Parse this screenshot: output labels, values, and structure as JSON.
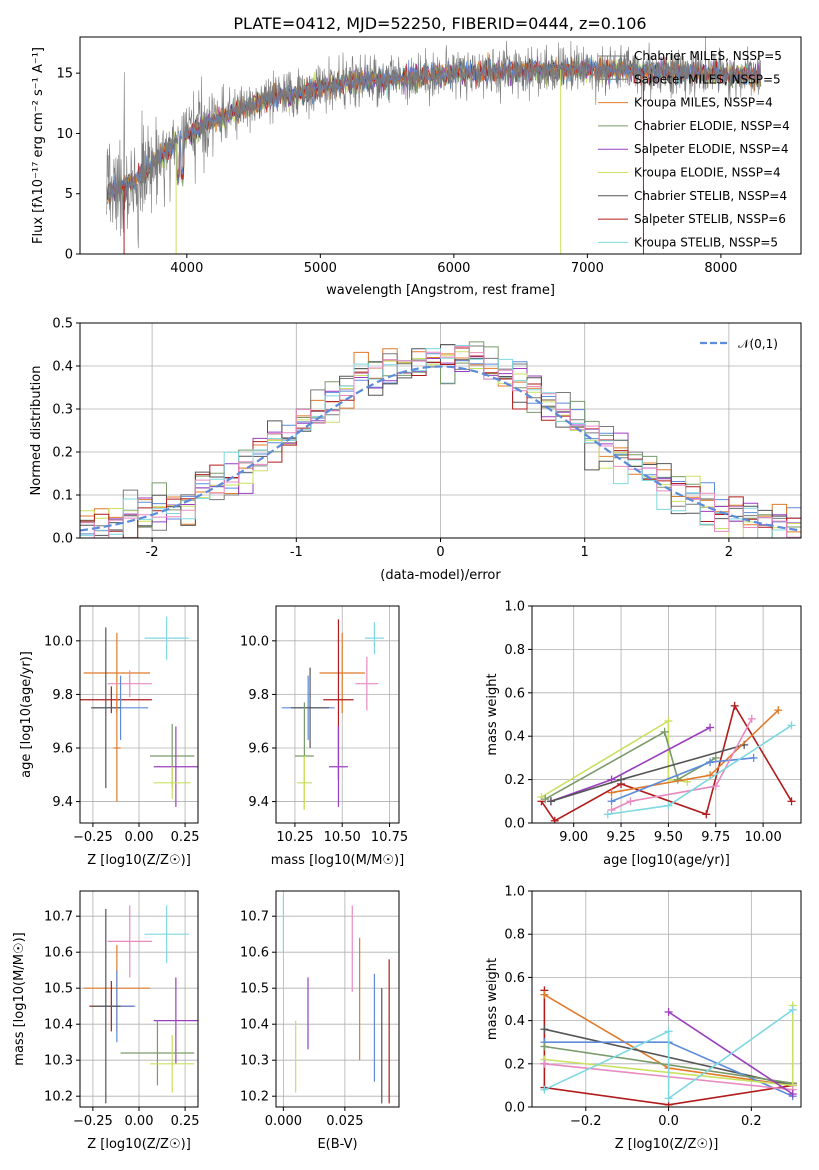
{
  "title": "PLATE=0412, MJD=52250, FIBERID=0444, z=0.106",
  "colors": {
    "Chabrier MILES": "#5b8bd9",
    "Salpeter MILES": "#e07b2b",
    "Kroupa MILES": "#7a7a7a",
    "Chabrier ELODIE": "#7a9a6a",
    "Salpeter ELODIE": "#9b3fbf",
    "Kroupa ELODIE": "#c9e060",
    "Chabrier STELIB": "#555555",
    "Salpeter STELIB": "#b01c1c",
    "Kroupa STELIB": "#7fd8e0",
    "Pink": "#e88ac0",
    "Normal": "#5b8bd9"
  },
  "chart_data": [
    {
      "type": "line",
      "panel": "spectrum",
      "xlabel": "wavelength [Angstrom, rest frame]",
      "ylabel": "Flux [fλ10⁻¹⁷ erg cm⁻² s⁻¹ A⁻¹]",
      "xlim": [
        3200,
        8600
      ],
      "ylim": [
        0,
        18
      ],
      "xticks": [
        4000,
        5000,
        6000,
        7000,
        8000
      ],
      "yticks": [
        0,
        5,
        10,
        15
      ],
      "legend_position": "right",
      "legend": [
        {
          "label": "Chabrier MILES, NSSP=5",
          "color": "#7a7a7a"
        },
        {
          "label": "Salpeter MILES, NSSP=5",
          "color": "#7a7a7a"
        },
        {
          "label": "Kroupa MILES, NSSP=4",
          "color": "#e07b2b"
        },
        {
          "label": "Chabrier ELODIE, NSSP=4",
          "color": "#7a9a6a"
        },
        {
          "label": "Salpeter ELODIE, NSSP=4",
          "color": "#9b3fbf"
        },
        {
          "label": "Kroupa ELODIE, NSSP=4",
          "color": "#c9e060"
        },
        {
          "label": "Chabrier STELIB, NSSP=4",
          "color": "#555555"
        },
        {
          "label": "Salpeter STELIB, NSSP=6",
          "color": "#b01c1c"
        },
        {
          "label": "Kroupa STELIB, NSSP=5",
          "color": "#7fd8e0"
        }
      ],
      "continuum": {
        "x": [
          3400,
          3600,
          3800,
          4000,
          4200,
          4400,
          4600,
          4800,
          5000,
          5200,
          5400,
          5600,
          5800,
          6000,
          6200,
          6400,
          6600,
          6800,
          7000,
          7200,
          7400,
          7600,
          7800,
          8000,
          8200,
          8300
        ],
        "y": [
          5.0,
          6.0,
          8.0,
          10.0,
          11.0,
          12.0,
          12.8,
          13.3,
          13.8,
          14.2,
          14.4,
          14.6,
          14.8,
          15.0,
          15.1,
          15.2,
          15.2,
          15.3,
          15.3,
          15.3,
          15.2,
          15.1,
          15.0,
          14.9,
          14.8,
          14.7
        ]
      }
    },
    {
      "type": "step",
      "panel": "residuals",
      "xlabel": "(data-model)/error",
      "ylabel": "Normed distribution",
      "xlim": [
        -2.5,
        2.5
      ],
      "ylim": [
        0,
        0.5
      ],
      "xticks": [
        -2,
        -1,
        0,
        1,
        2
      ],
      "yticks": [
        0.0,
        0.1,
        0.2,
        0.3,
        0.4,
        0.5
      ],
      "legend_label": "𝒩(0,1)",
      "bin_width": 0.1
    },
    {
      "type": "scatter",
      "panel": "age-vs-Z",
      "xlabel": "Z [log10(Z/Z☉)]",
      "ylabel": "age  [log10(age/yr)]",
      "xlim": [
        -0.32,
        0.32
      ],
      "ylim": [
        9.32,
        10.13
      ],
      "xticks": [
        -0.25,
        0.0,
        0.25
      ],
      "xtick_labels": [
        "−0.25",
        "0.00",
        "0.25"
      ],
      "yticks": [
        9.4,
        9.6,
        9.8,
        10.0
      ],
      "points": [
        {
          "x": 0.15,
          "y": 10.01,
          "dx": 0.12,
          "dy": 0.08,
          "color": "#7fd8e0"
        },
        {
          "x": -0.12,
          "y": 9.88,
          "dx": 0.18,
          "dy": 0.15,
          "color": "#e07b2b"
        },
        {
          "x": -0.05,
          "y": 9.84,
          "dx": 0.12,
          "dy": 0.05,
          "color": "#e88ac0"
        },
        {
          "x": -0.15,
          "y": 9.78,
          "dx": 0.22,
          "dy": 0.05,
          "color": "#b01c1c"
        },
        {
          "x": -0.1,
          "y": 9.75,
          "dx": 0.15,
          "dy": 0.12,
          "color": "#5b8bd9"
        },
        {
          "x": -0.18,
          "y": 9.75,
          "dx": 0.08,
          "dy": 0.3,
          "color": "#555555"
        },
        {
          "x": 0.18,
          "y": 9.57,
          "dx": 0.12,
          "dy": 0.12,
          "color": "#7a9a6a"
        },
        {
          "x": 0.2,
          "y": 9.53,
          "dx": 0.12,
          "dy": 0.15,
          "color": "#9b3fbf"
        },
        {
          "x": 0.18,
          "y": 9.47,
          "dx": 0.1,
          "dy": 0.06,
          "color": "#c9e060"
        },
        {
          "x": -0.12,
          "y": 9.6,
          "dx": 0.02,
          "dy": 0.2,
          "color": "#e07b2b"
        }
      ]
    },
    {
      "type": "scatter",
      "panel": "age-vs-mass",
      "xlabel": "mass [log10(M/M☉)]",
      "xlim": [
        10.15,
        10.8
      ],
      "ylim": [
        9.32,
        10.13
      ],
      "xticks": [
        10.25,
        10.5,
        10.75
      ],
      "xtick_labels": [
        "10.25",
        "10.50",
        "10.75"
      ],
      "yticks": [
        9.4,
        9.6,
        9.8,
        10.0
      ],
      "points": [
        {
          "x": 10.67,
          "y": 10.01,
          "dx": 0.05,
          "dy": 0.06,
          "color": "#7fd8e0"
        },
        {
          "x": 10.5,
          "y": 9.88,
          "dx": 0.12,
          "dy": 0.15,
          "color": "#e07b2b"
        },
        {
          "x": 10.63,
          "y": 9.84,
          "dx": 0.06,
          "dy": 0.1,
          "color": "#e88ac0"
        },
        {
          "x": 10.48,
          "y": 9.78,
          "dx": 0.08,
          "dy": 0.3,
          "color": "#b01c1c"
        },
        {
          "x": 10.32,
          "y": 9.75,
          "dx": 0.14,
          "dy": 0.12,
          "color": "#5b8bd9"
        },
        {
          "x": 10.33,
          "y": 9.75,
          "dx": 0.1,
          "dy": 0.15,
          "color": "#555555"
        },
        {
          "x": 10.3,
          "y": 9.57,
          "dx": 0.05,
          "dy": 0.2,
          "color": "#7a9a6a"
        },
        {
          "x": 10.48,
          "y": 9.53,
          "dx": 0.05,
          "dy": 0.15,
          "color": "#9b3fbf"
        },
        {
          "x": 10.3,
          "y": 9.47,
          "dx": 0.04,
          "dy": 0.1,
          "color": "#c9e060"
        }
      ]
    },
    {
      "type": "line",
      "panel": "weight-vs-age",
      "xlabel": "age  [log10(age/yr)]",
      "ylabel": "mass weight",
      "xlim": [
        8.78,
        10.2
      ],
      "ylim": [
        0,
        1
      ],
      "xticks": [
        9.0,
        9.25,
        9.5,
        9.75,
        10.0
      ],
      "xtick_labels": [
        "9.00",
        "9.25",
        "9.50",
        "9.75",
        "10.00"
      ],
      "yticks": [
        0.0,
        0.2,
        0.4,
        0.6,
        0.8,
        1.0
      ],
      "series": [
        {
          "color": "#b01c1c",
          "x": [
            8.83,
            8.9,
            9.25,
            9.7,
            9.85,
            10.15
          ],
          "y": [
            0.1,
            0.01,
            0.18,
            0.04,
            0.54,
            0.1
          ]
        },
        {
          "color": "#c9e060",
          "x": [
            8.83,
            9.5,
            9.5,
            9.6
          ],
          "y": [
            0.12,
            0.47,
            0.2,
            0.19
          ]
        },
        {
          "color": "#7a9a6a",
          "x": [
            8.85,
            9.48,
            9.55,
            9.75
          ],
          "y": [
            0.11,
            0.42,
            0.2,
            0.3
          ]
        },
        {
          "color": "#9b3fbf",
          "x": [
            8.88,
            9.2,
            9.72
          ],
          "y": [
            0.1,
            0.2,
            0.44
          ]
        },
        {
          "color": "#555555",
          "x": [
            8.88,
            9.25,
            9.9
          ],
          "y": [
            0.1,
            0.2,
            0.36
          ]
        },
        {
          "color": "#e07b2b",
          "x": [
            9.2,
            9.72,
            10.08
          ],
          "y": [
            0.14,
            0.22,
            0.52
          ]
        },
        {
          "color": "#5b8bd9",
          "x": [
            9.2,
            9.72,
            9.95
          ],
          "y": [
            0.1,
            0.28,
            0.3
          ]
        },
        {
          "color": "#e88ac0",
          "x": [
            9.2,
            9.3,
            9.75,
            9.94
          ],
          "y": [
            0.06,
            0.1,
            0.17,
            0.48
          ]
        },
        {
          "color": "#7fd8e0",
          "x": [
            9.18,
            9.5,
            10.15
          ],
          "y": [
            0.04,
            0.08,
            0.45
          ]
        }
      ]
    },
    {
      "type": "scatter",
      "panel": "mass-vs-Z",
      "xlabel": "Z [log10(Z/Z☉)]",
      "ylabel": "mass [log10(M/M☉)]",
      "xlim": [
        -0.32,
        0.32
      ],
      "ylim": [
        10.17,
        10.77
      ],
      "xticks": [
        -0.25,
        0.0,
        0.25
      ],
      "xtick_labels": [
        "−0.25",
        "0.00",
        "0.25"
      ],
      "yticks": [
        10.2,
        10.3,
        10.4,
        10.5,
        10.6,
        10.7
      ],
      "points": [
        {
          "x": 0.15,
          "y": 10.65,
          "dx": 0.12,
          "dy": 0.08,
          "color": "#7fd8e0"
        },
        {
          "x": -0.05,
          "y": 10.63,
          "dx": 0.12,
          "dy": 0.1,
          "color": "#e88ac0"
        },
        {
          "x": -0.12,
          "y": 10.5,
          "dx": 0.18,
          "dy": 0.12,
          "color": "#e07b2b"
        },
        {
          "x": -0.15,
          "y": 10.45,
          "dx": 0.12,
          "dy": 0.07,
          "color": "#b01c1c"
        },
        {
          "x": -0.12,
          "y": 10.45,
          "dx": 0.1,
          "dy": 0.1,
          "color": "#5b8bd9"
        },
        {
          "x": -0.18,
          "y": 10.45,
          "dx": 0.08,
          "dy": 0.27,
          "color": "#555555"
        },
        {
          "x": 0.2,
          "y": 10.41,
          "dx": 0.12,
          "dy": 0.12,
          "color": "#9b3fbf"
        },
        {
          "x": 0.1,
          "y": 10.32,
          "dx": 0.2,
          "dy": 0.09,
          "color": "#7a9a6a"
        },
        {
          "x": 0.18,
          "y": 10.29,
          "dx": 0.12,
          "dy": 0.08,
          "color": "#c9e060"
        }
      ]
    },
    {
      "type": "scatter",
      "panel": "mass-vs-EBV",
      "xlabel": "E(B-V)",
      "xlim": [
        -0.003,
        0.047
      ],
      "ylim": [
        10.17,
        10.77
      ],
      "xticks": [
        0.0,
        0.025
      ],
      "xtick_labels": [
        "0.000",
        "0.025"
      ],
      "yticks": [
        10.2,
        10.3,
        10.4,
        10.5,
        10.6,
        10.7
      ],
      "points": [
        {
          "x": 0.0,
          "y": 10.68,
          "dx": 0,
          "dy": 0.08,
          "color": "#7fd8e0"
        },
        {
          "x": 0.005,
          "y": 10.31,
          "dx": 0,
          "dy": 0.1,
          "color": "#c9e060"
        },
        {
          "x": 0.01,
          "y": 10.43,
          "dx": 0,
          "dy": 0.1,
          "color": "#9b3fbf"
        },
        {
          "x": 0.028,
          "y": 10.61,
          "dx": 0,
          "dy": 0.12,
          "color": "#e88ac0"
        },
        {
          "x": 0.031,
          "y": 10.47,
          "dx": 0,
          "dy": 0.17,
          "color": "#e07b2b"
        },
        {
          "x": 0.037,
          "y": 10.39,
          "dx": 0,
          "dy": 0.15,
          "color": "#5b8bd9"
        },
        {
          "x": 0.04,
          "y": 10.34,
          "dx": 0,
          "dy": 0.16,
          "color": "#555555"
        },
        {
          "x": 0.043,
          "y": 10.38,
          "dx": 0,
          "dy": 0.2,
          "color": "#b01c1c"
        }
      ]
    },
    {
      "type": "line",
      "panel": "weight-vs-Z",
      "xlabel": "Z [log10(Z/Z☉)]",
      "ylabel": "mass weight",
      "xlim": [
        -0.33,
        0.32
      ],
      "ylim": [
        0,
        1
      ],
      "xticks": [
        -0.2,
        0.0,
        0.2
      ],
      "xtick_labels": [
        "−0.2",
        "0.0",
        "0.2"
      ],
      "yticks": [
        0.0,
        0.2,
        0.4,
        0.6,
        0.8,
        1.0
      ],
      "series": [
        {
          "color": "#b01c1c",
          "x": [
            -0.3,
            -0.3,
            -0.3,
            0.0,
            0.3,
            0.3
          ],
          "y": [
            0.54,
            0.2,
            0.09,
            0.01,
            0.1,
            0.11
          ]
        },
        {
          "color": "#e07b2b",
          "x": [
            -0.3,
            0.0,
            0.3
          ],
          "y": [
            0.52,
            0.18,
            0.1
          ]
        },
        {
          "color": "#555555",
          "x": [
            -0.3,
            0.3
          ],
          "y": [
            0.36,
            0.1
          ]
        },
        {
          "color": "#5b8bd9",
          "x": [
            -0.3,
            0.0,
            0.3
          ],
          "y": [
            0.3,
            0.3,
            0.05
          ]
        },
        {
          "color": "#7a9a6a",
          "x": [
            -0.3,
            0.3
          ],
          "y": [
            0.28,
            0.11
          ]
        },
        {
          "color": "#c9e060",
          "x": [
            -0.3,
            0.3,
            0.3
          ],
          "y": [
            0.22,
            0.1,
            0.47
          ]
        },
        {
          "color": "#e88ac0",
          "x": [
            -0.3,
            0.3
          ],
          "y": [
            0.2,
            0.08
          ]
        },
        {
          "color": "#9b3fbf",
          "x": [
            0.0,
            0.3
          ],
          "y": [
            0.44,
            0.06
          ]
        },
        {
          "color": "#7fd8e0",
          "x": [
            -0.3,
            0.0,
            0.0,
            0.3
          ],
          "y": [
            0.08,
            0.35,
            0.04,
            0.45
          ]
        }
      ]
    }
  ]
}
